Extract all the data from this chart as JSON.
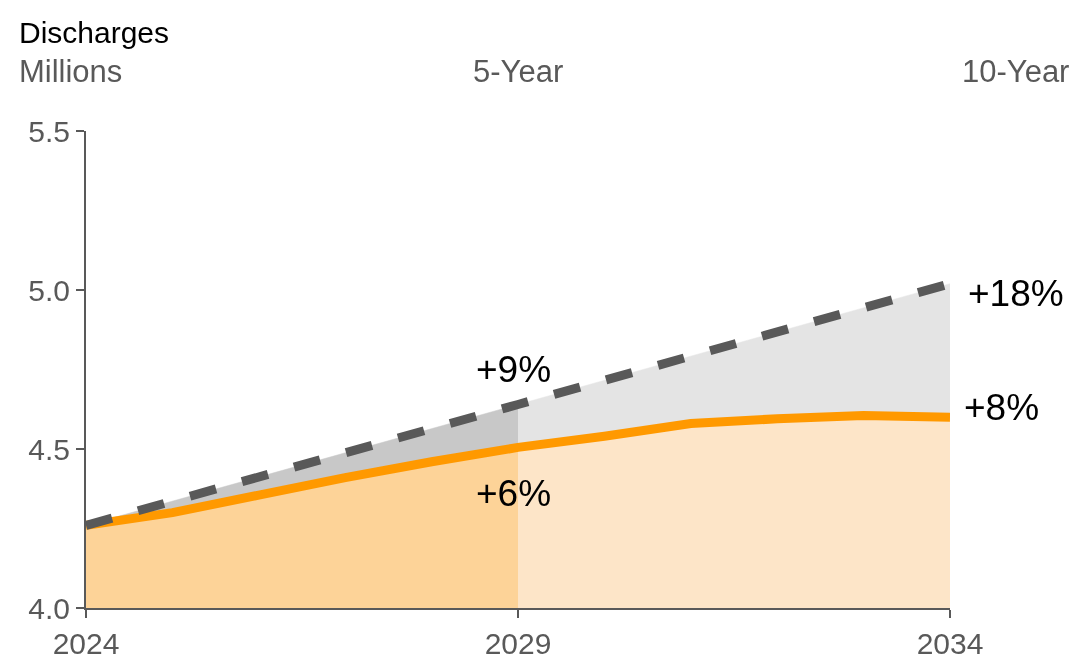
{
  "chart_data": {
    "type": "line",
    "title": "Discharges",
    "ylabel": "Millions",
    "x": [
      2024,
      2025,
      2026,
      2027,
      2028,
      2029,
      2030,
      2031,
      2032,
      2033,
      2034
    ],
    "series": [
      {
        "type": "area",
        "color": "#c8c8c8",
        "x": [
          2024,
          2029
        ],
        "values": [
          4.26,
          4.64
        ]
      },
      {
        "type": "area",
        "color": "#e4e4e4",
        "x": [
          2029,
          2034
        ],
        "values": [
          4.64,
          5.02
        ]
      },
      {
        "type": "area",
        "color": "#fdd398",
        "x": [
          2024,
          2025,
          2026,
          2027,
          2028,
          2029
        ],
        "values": [
          4.26,
          4.3,
          4.355,
          4.41,
          4.46,
          4.505
        ]
      },
      {
        "type": "area",
        "color": "#fde5c8",
        "x": [
          2029,
          2030,
          2031,
          2032,
          2033,
          2034
        ],
        "values": [
          4.505,
          4.54,
          4.58,
          4.595,
          4.605,
          4.6
        ]
      },
      {
        "type": "line",
        "color": "#ff9900",
        "values": [
          4.26,
          4.3,
          4.355,
          4.41,
          4.46,
          4.505,
          4.54,
          4.58,
          4.595,
          4.605,
          4.6
        ]
      },
      {
        "type": "line",
        "color": "#595959",
        "line_style": "dashed",
        "x": [
          2024,
          2029,
          2034
        ],
        "values": [
          4.26,
          4.64,
          5.02
        ]
      }
    ],
    "annotations": [
      "5-Year",
      "10-Year",
      "+9%",
      "+18%",
      "+6%",
      "+8%"
    ],
    "xlim": [
      2024,
      2034
    ],
    "xticks": [
      2024,
      2029,
      2034
    ],
    "ylim": [
      4,
      5.5
    ],
    "yticks": [
      {
        "value": 4,
        "label": "4.0"
      },
      4.5,
      {
        "value": 5,
        "label": "5.0"
      },
      5.5
    ],
    "grid": false,
    "marker": "none"
  }
}
